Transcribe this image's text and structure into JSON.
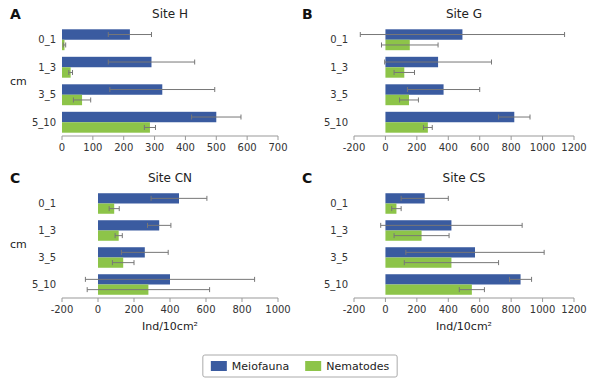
{
  "chart_data": [
    {
      "type": "bar",
      "orientation": "horizontal",
      "title": "Site H",
      "annotations": [
        "A"
      ],
      "y_label": "cm",
      "categories": [
        "0_1",
        "1_3",
        "3_5",
        "5_10"
      ],
      "series": [
        {
          "name": "Meiofauna",
          "color": "#3A5BA0",
          "values": [
            220,
            290,
            325,
            500
          ],
          "errors": [
            70,
            140,
            170,
            80
          ]
        },
        {
          "name": "Nematodes",
          "color": "#8DC449",
          "values": [
            8,
            28,
            65,
            285
          ],
          "errors": [
            4,
            6,
            28,
            18
          ]
        }
      ],
      "xlim": [
        0,
        700
      ],
      "xticks": [
        0,
        100,
        200,
        300,
        400,
        500,
        600,
        700
      ],
      "legend": "bottom"
    },
    {
      "type": "bar",
      "orientation": "horizontal",
      "title": "Site G",
      "annotations": [
        "B"
      ],
      "categories": [
        "0_1",
        "1_3",
        "3_5",
        "5_10"
      ],
      "series": [
        {
          "name": "Meiofauna",
          "color": "#3A5BA0",
          "values": [
            490,
            335,
            370,
            820
          ],
          "errors": [
            650,
            340,
            230,
            100
          ]
        },
        {
          "name": "Nematodes",
          "color": "#8DC449",
          "values": [
            155,
            120,
            150,
            270
          ],
          "errors": [
            180,
            65,
            60,
            28
          ]
        }
      ],
      "xlim": [
        -200,
        1200
      ],
      "xticks": [
        -200,
        0,
        200,
        400,
        600,
        800,
        1000,
        1200
      ]
    },
    {
      "type": "bar",
      "orientation": "horizontal",
      "title": "Site CN",
      "annotations": [
        "C"
      ],
      "y_label": "cm",
      "x_label": "Ind/10cm²",
      "categories": [
        "0_1",
        "1_3",
        "3_5",
        "5_10"
      ],
      "series": [
        {
          "name": "Meiofauna",
          "color": "#3A5BA0",
          "values": [
            450,
            340,
            260,
            400
          ],
          "errors": [
            155,
            65,
            130,
            470
          ]
        },
        {
          "name": "Nematodes",
          "color": "#8DC449",
          "values": [
            90,
            115,
            140,
            280
          ],
          "errors": [
            28,
            20,
            60,
            340
          ]
        }
      ],
      "xlim": [
        -200,
        1000
      ],
      "xticks": [
        -200,
        0,
        200,
        400,
        600,
        800,
        1000
      ]
    },
    {
      "type": "bar",
      "orientation": "horizontal",
      "title": "Site CS",
      "annotations": [
        "C"
      ],
      "x_label": "Ind/10cm²",
      "categories": [
        "0_1",
        "1_3",
        "3_5",
        "5_10"
      ],
      "series": [
        {
          "name": "Meiofauna",
          "color": "#3A5BA0",
          "values": [
            250,
            420,
            570,
            860
          ],
          "errors": [
            150,
            450,
            440,
            70
          ]
        },
        {
          "name": "Nematodes",
          "color": "#8DC449",
          "values": [
            70,
            230,
            420,
            550
          ],
          "errors": [
            30,
            175,
            300,
            80
          ]
        }
      ],
      "xlim": [
        -200,
        1200
      ],
      "xticks": [
        -200,
        0,
        200,
        400,
        600,
        800,
        1000,
        1200
      ]
    }
  ]
}
